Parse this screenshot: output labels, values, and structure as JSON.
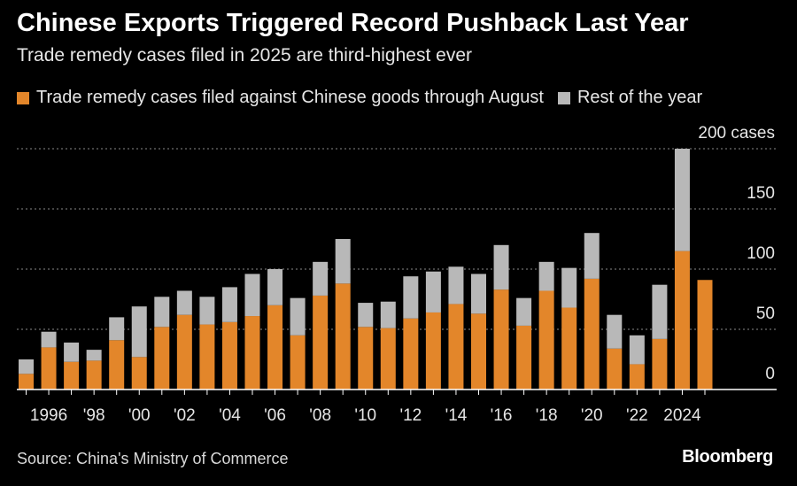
{
  "title": "Chinese Exports Triggered Record Pushback Last Year",
  "subtitle": "Trade remedy cases filed in 2025 are third-highest ever",
  "legend": [
    {
      "label": "Trade remedy cases filed against Chinese goods through August",
      "color": "#e3862a"
    },
    {
      "label": "Rest of the year",
      "color": "#b8b8b8"
    }
  ],
  "source": "Source: China's Ministry of Commerce",
  "brand": "Bloomberg",
  "colors": {
    "through_august": "#e3862a",
    "rest_of_year": "#b8b8b8",
    "grid": "#8a8a8a",
    "axis": "#ffffff",
    "background": "#000000"
  },
  "chart_data": {
    "type": "bar",
    "stacked": true,
    "x": [
      1995,
      1996,
      1997,
      1998,
      1999,
      2000,
      2001,
      2002,
      2003,
      2004,
      2005,
      2006,
      2007,
      2008,
      2009,
      2010,
      2011,
      2012,
      2013,
      2014,
      2015,
      2016,
      2017,
      2018,
      2019,
      2020,
      2021,
      2022,
      2023,
      2024,
      2025
    ],
    "series": [
      {
        "name": "Trade remedy cases filed against Chinese goods through August",
        "values": [
          13,
          35,
          23,
          24,
          41,
          27,
          52,
          62,
          54,
          56,
          61,
          70,
          45,
          78,
          88,
          52,
          51,
          59,
          64,
          71,
          63,
          83,
          53,
          82,
          68,
          92,
          34,
          21,
          42,
          115,
          91
        ]
      },
      {
        "name": "Rest of the year",
        "values": [
          12,
          13,
          16,
          9,
          19,
          42,
          25,
          20,
          23,
          29,
          35,
          30,
          31,
          28,
          37,
          20,
          22,
          35,
          34,
          31,
          33,
          37,
          23,
          24,
          33,
          38,
          28,
          24,
          45,
          85,
          0
        ]
      }
    ],
    "x_tick_labels": [
      {
        "year": 1996,
        "label": "1996"
      },
      {
        "year": 1998,
        "label": "'98"
      },
      {
        "year": 2000,
        "label": "'00"
      },
      {
        "year": 2002,
        "label": "'02"
      },
      {
        "year": 2004,
        "label": "'04"
      },
      {
        "year": 2006,
        "label": "'06"
      },
      {
        "year": 2008,
        "label": "'08"
      },
      {
        "year": 2010,
        "label": "'10"
      },
      {
        "year": 2012,
        "label": "'12"
      },
      {
        "year": 2014,
        "label": "'14"
      },
      {
        "year": 2016,
        "label": "'16"
      },
      {
        "year": 2018,
        "label": "'18"
      },
      {
        "year": 2020,
        "label": "'20"
      },
      {
        "year": 2022,
        "label": "'22"
      },
      {
        "year": 2024,
        "label": "2024"
      }
    ],
    "y_ticks": [
      {
        "value": 0,
        "label": "0"
      },
      {
        "value": 50,
        "label": "50"
      },
      {
        "value": 100,
        "label": "100"
      },
      {
        "value": 150,
        "label": "150"
      },
      {
        "value": 200,
        "label": "200 cases"
      }
    ],
    "ylim": [
      0,
      200
    ],
    "grid": true,
    "y_axis_position": "right",
    "legend_position": "top-left"
  }
}
